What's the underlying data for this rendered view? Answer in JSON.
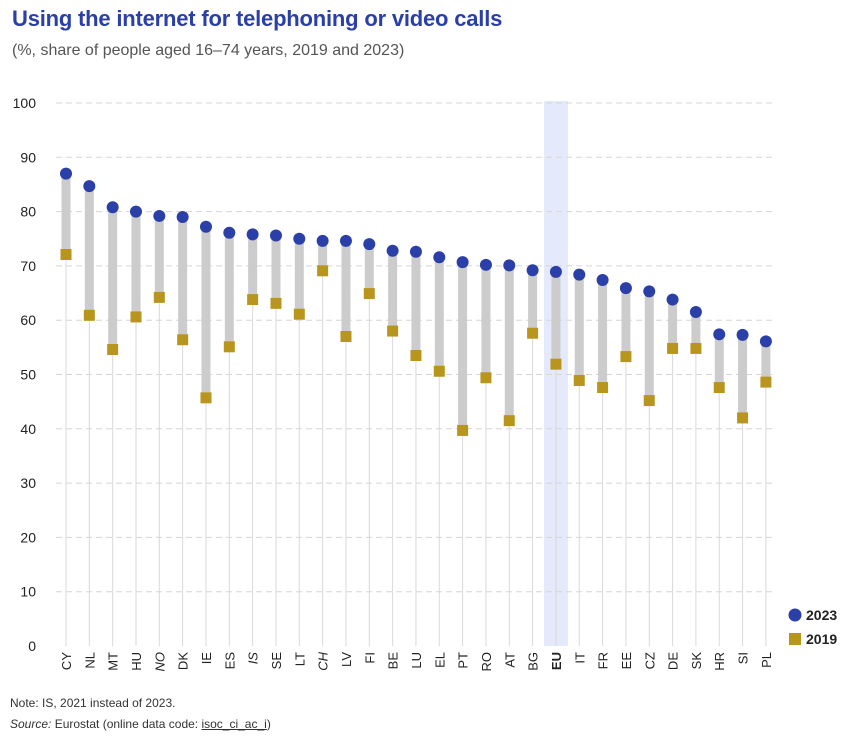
{
  "title": "Using the internet for telephoning or video calls",
  "subtitle": "(%, share of people aged 16–74 years, 2019 and 2023)",
  "note": "Note: IS, 2021 instead of 2023.",
  "source": {
    "label": "Source:",
    "text": " Eurostat (online data code: ",
    "link": "isoc_ci_ac_i",
    "end": ")"
  },
  "colors": {
    "series_2023": "#2a3fa8",
    "series_2019": "#b8961e",
    "range_bar": "#cccccc",
    "eu_highlight": "#e4eafb",
    "gridline": "#d5d5d5",
    "axis_line": "#d9d9d9"
  },
  "chart_data": {
    "type": "dot-range",
    "categories": [
      "CY",
      "NL",
      "MT",
      "HU",
      "NO",
      "DK",
      "IE",
      "ES",
      "IS",
      "SE",
      "LT",
      "CH",
      "LV",
      "FI",
      "BE",
      "LU",
      "EL",
      "PT",
      "RO",
      "AT",
      "BG",
      "EU",
      "IT",
      "FR",
      "EE",
      "CZ",
      "DE",
      "SK",
      "HR",
      "SI",
      "PL"
    ],
    "italic_categories": [
      "NO",
      "IS",
      "CH"
    ],
    "highlight_category": "EU",
    "series": [
      {
        "name": "2023",
        "marker": "circle",
        "values": [
          87,
          84.7,
          80.8,
          80,
          79.2,
          79,
          77.2,
          76.1,
          75.8,
          75.6,
          75,
          74.6,
          74.6,
          74,
          72.8,
          72.6,
          71.6,
          70.7,
          70.2,
          70.1,
          69.2,
          68.9,
          68.4,
          67.4,
          65.9,
          65.3,
          63.8,
          61.5,
          57.4,
          57.3,
          56.1
        ]
      },
      {
        "name": "2019",
        "marker": "square",
        "values": [
          72.1,
          60.9,
          54.6,
          60.6,
          64.2,
          56.4,
          45.7,
          55.1,
          63.8,
          63.1,
          61.1,
          69.1,
          57,
          64.9,
          58,
          53.5,
          50.6,
          39.7,
          49.4,
          41.5,
          57.6,
          51.9,
          48.9,
          47.6,
          53.3,
          45.2,
          54.8,
          54.8,
          47.6,
          42,
          48.6
        ]
      }
    ],
    "ylim": [
      0,
      100
    ],
    "yticks": [
      0,
      10,
      20,
      30,
      40,
      50,
      60,
      70,
      80,
      90,
      100
    ],
    "grid": true,
    "legend": "bottom-right"
  }
}
